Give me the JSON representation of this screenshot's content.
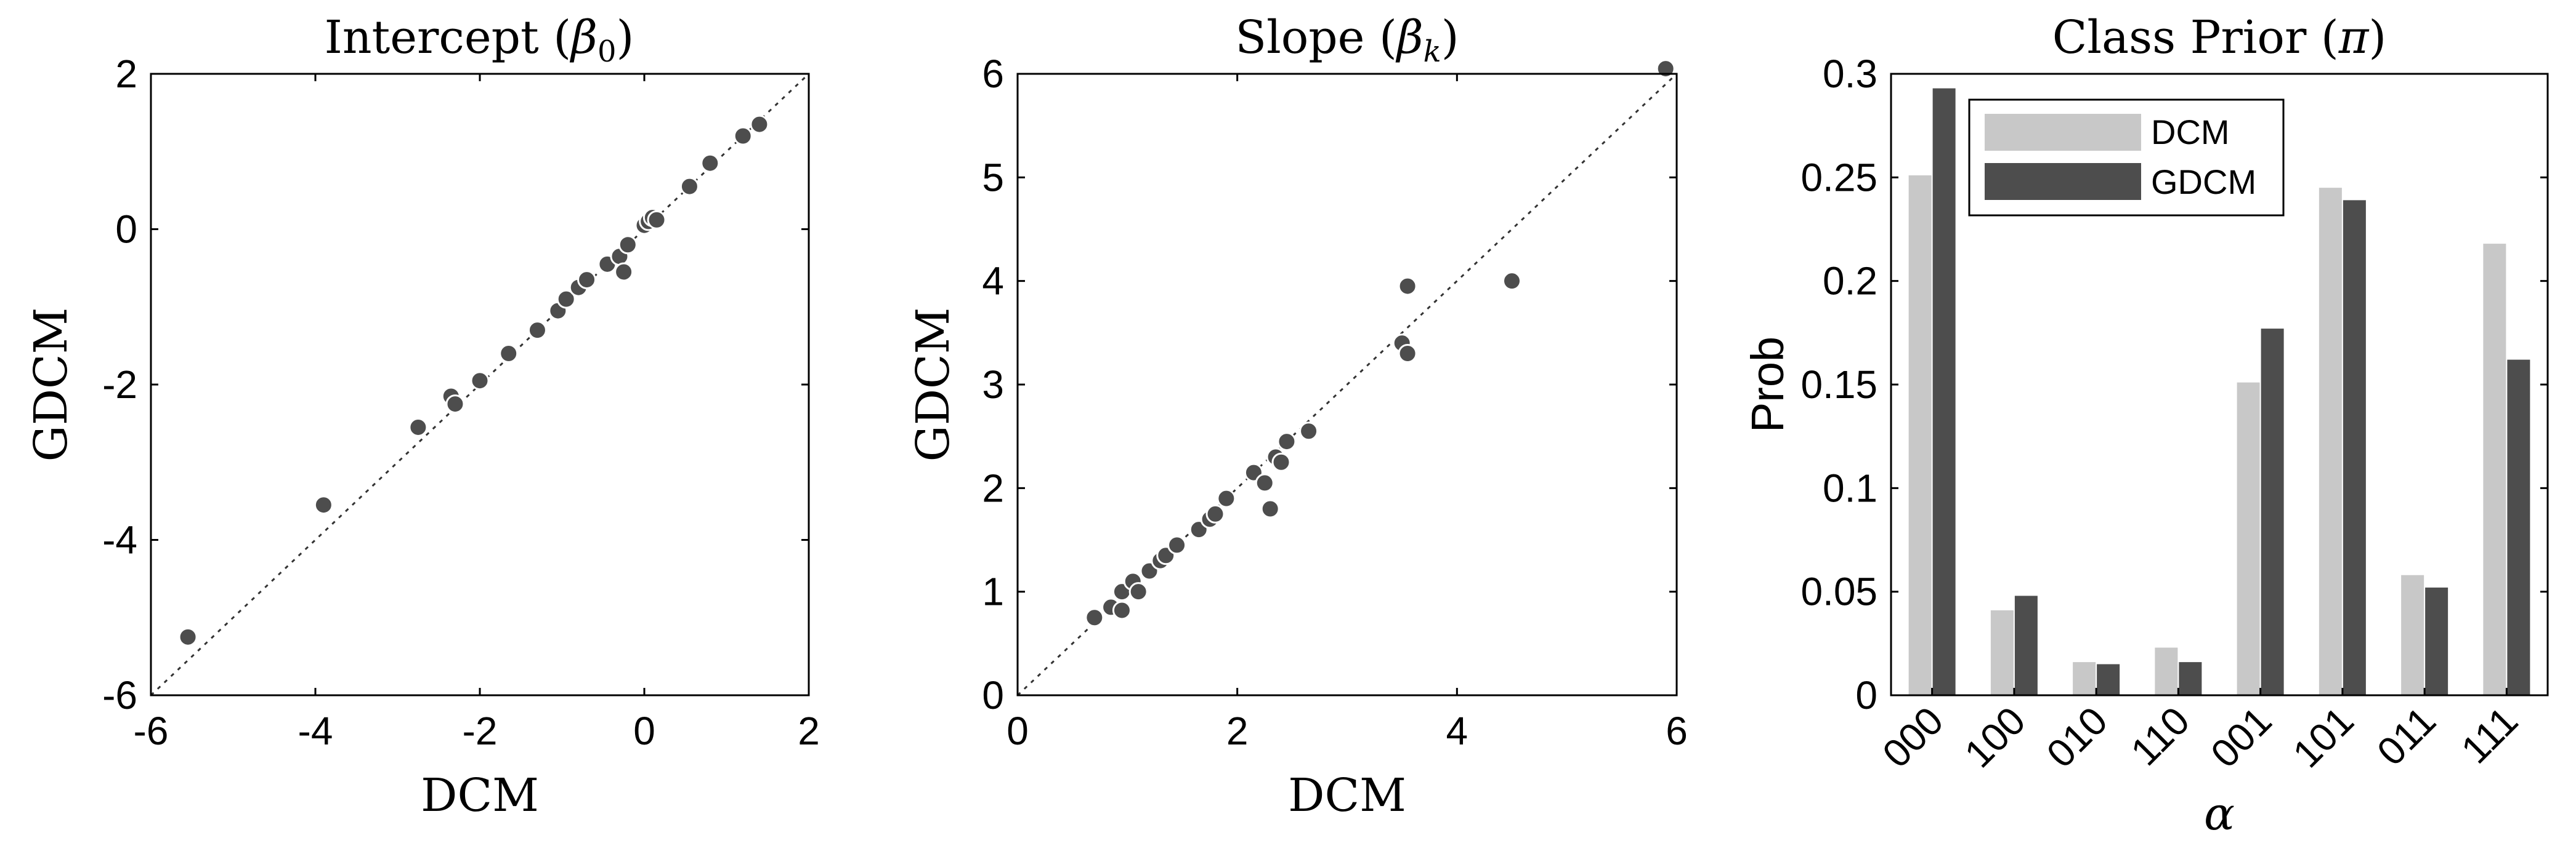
{
  "chart_data": [
    {
      "type": "scatter",
      "title": "Intercept (β₀)",
      "xlabel": "DCM",
      "ylabel": "GDCM",
      "xlim": [
        -6,
        2
      ],
      "ylim": [
        -6,
        2
      ],
      "xticks": [
        "-6",
        "-4",
        "-2",
        "0",
        "2"
      ],
      "yticks": [
        "-6",
        "-4",
        "-2",
        "0",
        "2"
      ],
      "reference_line": "y = x",
      "marker_color": "#4d4d4d",
      "points": [
        [
          -5.55,
          -5.25
        ],
        [
          -3.9,
          -3.55
        ],
        [
          -2.75,
          -2.55
        ],
        [
          -2.35,
          -2.15
        ],
        [
          -2.3,
          -2.25
        ],
        [
          -2.0,
          -1.95
        ],
        [
          -1.65,
          -1.6
        ],
        [
          -1.3,
          -1.3
        ],
        [
          -1.05,
          -1.05
        ],
        [
          -0.95,
          -0.9
        ],
        [
          -0.8,
          -0.75
        ],
        [
          -0.7,
          -0.65
        ],
        [
          -0.45,
          -0.45
        ],
        [
          -0.3,
          -0.35
        ],
        [
          -0.25,
          -0.55
        ],
        [
          -0.2,
          -0.2
        ],
        [
          0.0,
          0.05
        ],
        [
          0.05,
          0.1
        ],
        [
          0.1,
          0.15
        ],
        [
          0.15,
          0.12
        ],
        [
          0.55,
          0.55
        ],
        [
          0.8,
          0.85
        ],
        [
          1.2,
          1.2
        ],
        [
          1.4,
          1.35
        ]
      ]
    },
    {
      "type": "scatter",
      "title": "Slope (β_k)",
      "xlabel": "DCM",
      "ylabel": "GDCM",
      "xlim": [
        0,
        6
      ],
      "ylim": [
        0,
        6
      ],
      "xticks": [
        "0",
        "2",
        "4",
        "6"
      ],
      "yticks": [
        "0",
        "1",
        "2",
        "3",
        "4",
        "5",
        "6"
      ],
      "reference_line": "y = x",
      "marker_color": "#4d4d4d",
      "points": [
        [
          0.7,
          0.75
        ],
        [
          0.85,
          0.85
        ],
        [
          0.95,
          0.82
        ],
        [
          0.95,
          1.0
        ],
        [
          1.05,
          1.1
        ],
        [
          1.1,
          1.0
        ],
        [
          1.2,
          1.2
        ],
        [
          1.3,
          1.3
        ],
        [
          1.35,
          1.35
        ],
        [
          1.45,
          1.45
        ],
        [
          1.65,
          1.6
        ],
        [
          1.75,
          1.7
        ],
        [
          1.8,
          1.75
        ],
        [
          1.9,
          1.9
        ],
        [
          2.15,
          2.15
        ],
        [
          2.25,
          2.05
        ],
        [
          2.3,
          1.8
        ],
        [
          2.35,
          2.3
        ],
        [
          2.4,
          2.25
        ],
        [
          2.45,
          2.45
        ],
        [
          2.65,
          2.55
        ],
        [
          3.5,
          3.4
        ],
        [
          3.55,
          3.3
        ],
        [
          3.55,
          3.95
        ],
        [
          4.5,
          4.0
        ],
        [
          5.9,
          6.05
        ]
      ]
    },
    {
      "type": "bar",
      "title": "Class Prior (π)",
      "xlabel": "α",
      "ylabel": "Prob",
      "ylim": [
        0,
        0.3
      ],
      "yticks": [
        "0",
        "0.05",
        "0.1",
        "0.15",
        "0.2",
        "0.25",
        "0.3"
      ],
      "categories": [
        "000",
        "100",
        "010",
        "110",
        "001",
        "101",
        "011",
        "111"
      ],
      "legend": "top-left",
      "series": [
        {
          "name": "DCM",
          "color": "#c8c8c8",
          "values": [
            0.251,
            0.041,
            0.016,
            0.023,
            0.151,
            0.245,
            0.058,
            0.218
          ]
        },
        {
          "name": "GDCM",
          "color": "#4d4d4d",
          "values": [
            0.293,
            0.048,
            0.015,
            0.016,
            0.177,
            0.239,
            0.052,
            0.162
          ]
        }
      ]
    }
  ]
}
